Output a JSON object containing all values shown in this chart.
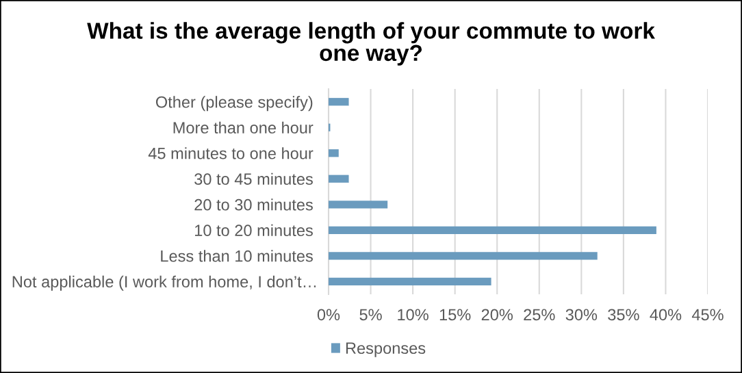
{
  "chart_data": {
    "type": "bar",
    "orientation": "horizontal",
    "title": "What is the average length of your commute to work\none way?",
    "categories": [
      "Other (please specify)",
      "More than one hour",
      "45 minutes to one hour",
      "30 to 45 minutes",
      "20 to 30 minutes",
      "10 to 20 minutes",
      "Less than 10 minutes",
      "Not applicable (I work from home, I don’t…"
    ],
    "series": [
      {
        "name": "Responses",
        "color": "#6a9bbe",
        "values": [
          2.4,
          0.2,
          1.2,
          2.4,
          7.0,
          38.9,
          31.9,
          19.3
        ]
      }
    ],
    "xlim": [
      0,
      45
    ],
    "xticks": [
      {
        "value": 0,
        "label": "0%"
      },
      {
        "value": 5,
        "label": "5%"
      },
      {
        "value": 10,
        "label": "10%"
      },
      {
        "value": 15,
        "label": "15%"
      },
      {
        "value": 20,
        "label": "20%"
      },
      {
        "value": 25,
        "label": "25%"
      },
      {
        "value": 30,
        "label": "30%"
      },
      {
        "value": 35,
        "label": "35%"
      },
      {
        "value": 40,
        "label": "40%"
      },
      {
        "value": 45,
        "label": "45%"
      }
    ],
    "grid": "x",
    "legend": "bottom"
  }
}
